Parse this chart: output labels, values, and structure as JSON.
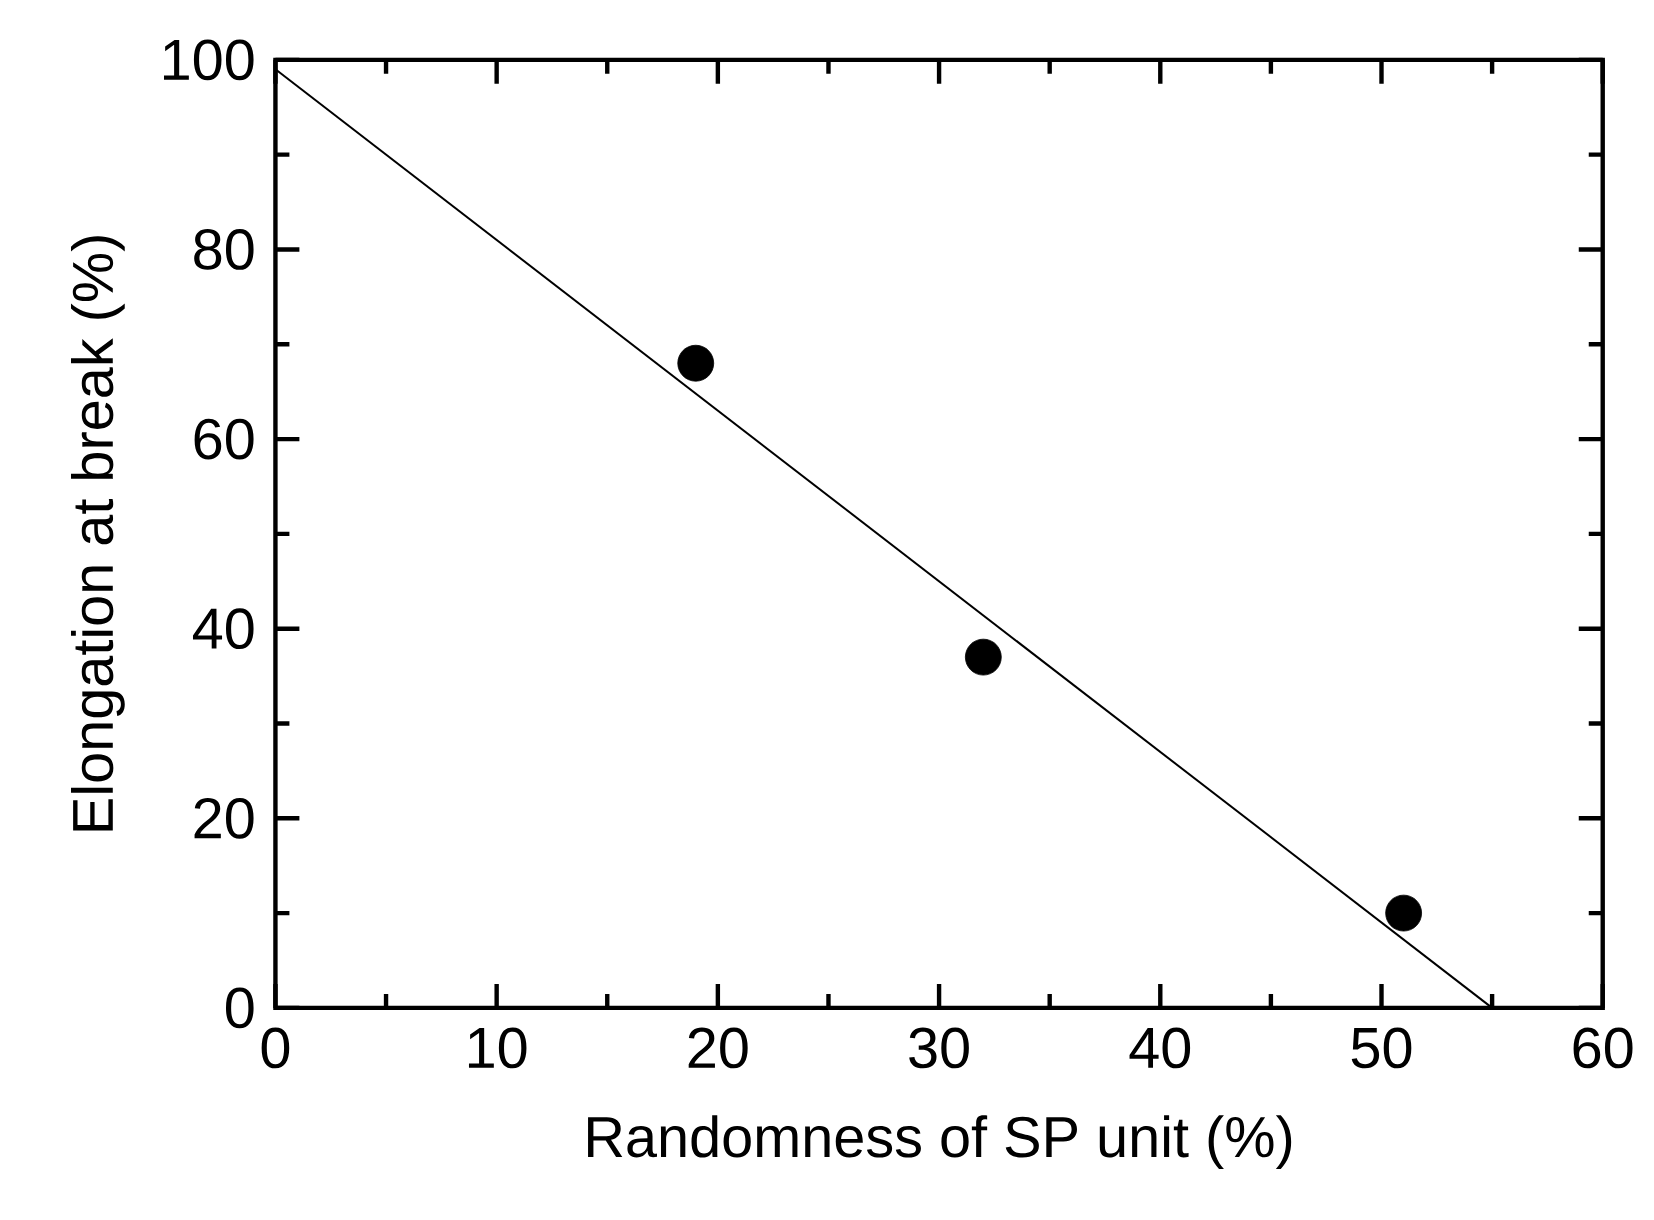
{
  "chart_data": {
    "type": "scatter",
    "xlabel": "Randomness of SP unit (%)",
    "ylabel": "Elongation at break (%)",
    "xlim": [
      0,
      60
    ],
    "ylim": [
      0,
      100
    ],
    "xticks": [
      0,
      10,
      20,
      30,
      40,
      50,
      60
    ],
    "yticks": [
      0,
      20,
      40,
      60,
      80,
      100
    ],
    "grid": false,
    "series": [
      {
        "color": "#000000",
        "marker": "circle",
        "x": [
          19,
          32,
          51
        ],
        "values": [
          68,
          37,
          10
        ]
      },
      {
        "type": "line",
        "color": "#000000",
        "marker": "none",
        "line_style": "solid",
        "x": [
          0,
          55
        ],
        "values": [
          99,
          0
        ]
      }
    ]
  }
}
